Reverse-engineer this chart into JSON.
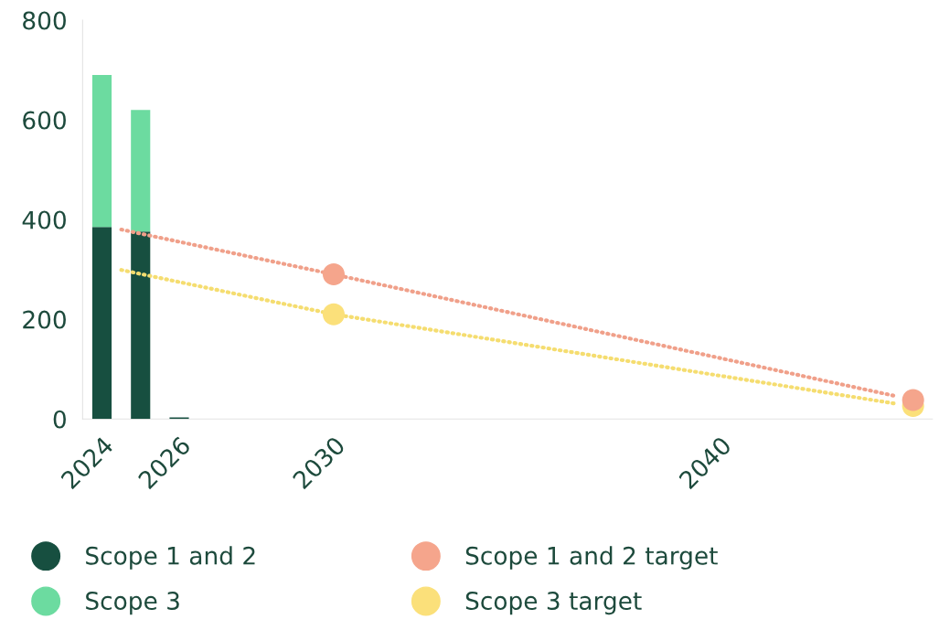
{
  "chart_data": {
    "type": "bar",
    "stacked": true,
    "x": [
      2024,
      2025,
      2026
    ],
    "xlim": [
      2023.5,
      2045.5
    ],
    "xticks": [
      2024,
      2026,
      2030,
      2040
    ],
    "ylim": [
      0,
      800
    ],
    "yticks": [
      0,
      200,
      400,
      600,
      800
    ],
    "grid": false,
    "legend": "bottom",
    "series": [
      {
        "name": "Scope 1 and 2",
        "color": "#174f40",
        "values": [
          385,
          376,
          3
        ]
      },
      {
        "name": "Scope 3",
        "color": "#6cdba0",
        "values": [
          305,
          244,
          0
        ]
      },
      {
        "type": "line",
        "color": "#f0a08a",
        "x": [
          2024.5,
          2030,
          2044.6
        ],
        "values": [
          380,
          290,
          45
        ],
        "line_style": "dotted",
        "marker": "none"
      },
      {
        "type": "line",
        "color": "#f5dd70",
        "x": [
          2024.5,
          2030,
          2044.6
        ],
        "values": [
          299,
          210,
          30
        ],
        "line_style": "dotted",
        "marker": "none"
      },
      {
        "type": "scatter",
        "name": "Scope 1 and 2 target",
        "color": "#f5a58c",
        "x": [
          2030,
          2045
        ],
        "values": [
          290,
          38
        ],
        "marker": "circle"
      },
      {
        "type": "scatter",
        "name": "Scope 3 target",
        "color": "#fbe07a",
        "x": [
          2030,
          2045
        ],
        "values": [
          210,
          26
        ],
        "marker": "circle"
      }
    ]
  }
}
